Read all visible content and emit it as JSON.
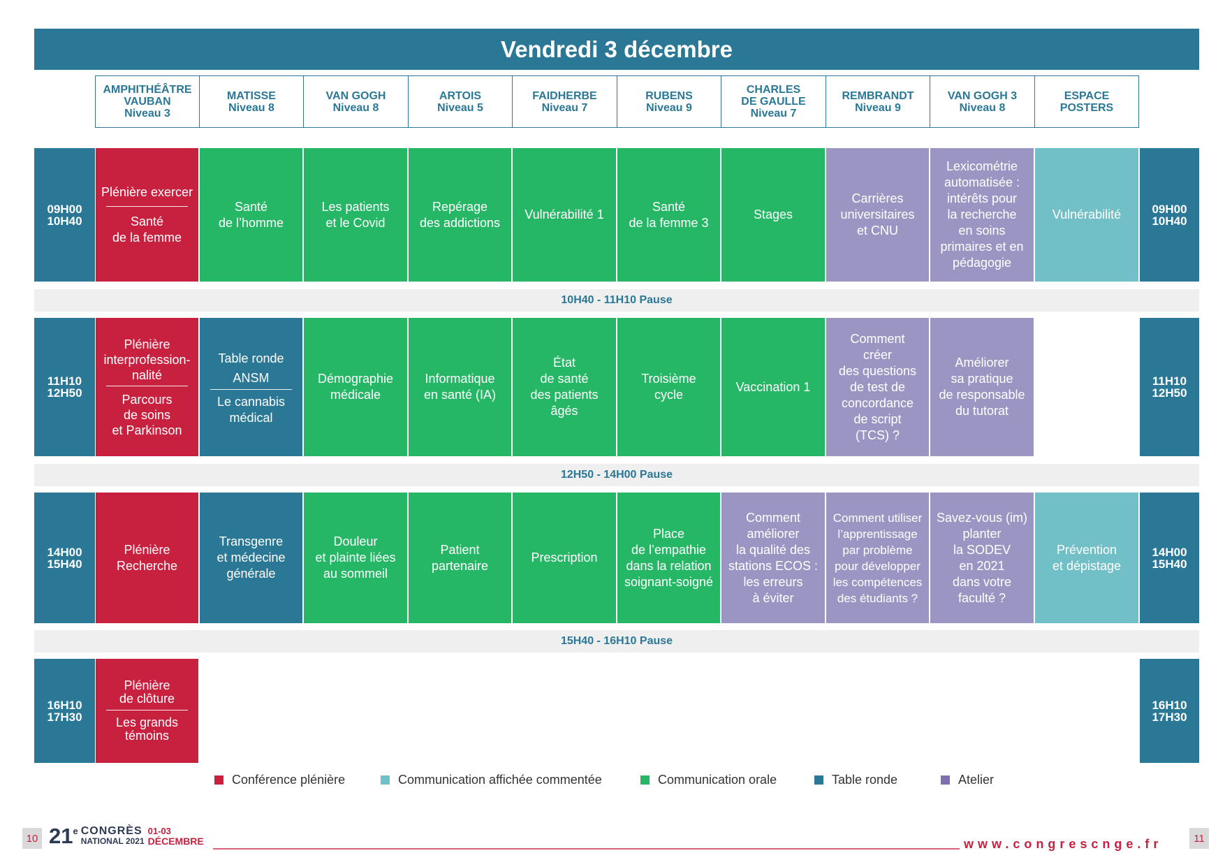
{
  "title": "Vendredi 3  décembre",
  "rooms": [
    {
      "l1": "AMPHITHÉÂTRE",
      "l2": "VAUBAN",
      "l3": "Niveau 3"
    },
    {
      "l1": "MATISSE",
      "l2": "Niveau 8",
      "l3": ""
    },
    {
      "l1": "VAN GOGH",
      "l2": "Niveau 8",
      "l3": ""
    },
    {
      "l1": "ARTOIS",
      "l2": "Niveau 5",
      "l3": ""
    },
    {
      "l1": "FAIDHERBE",
      "l2": "Niveau 7",
      "l3": ""
    },
    {
      "l1": "RUBENS",
      "l2": "Niveau 9",
      "l3": ""
    },
    {
      "l1": "CHARLES",
      "l2": "DE GAULLE",
      "l3": "Niveau 7"
    },
    {
      "l1": "REMBRANDT",
      "l2": "Niveau 9",
      "l3": ""
    },
    {
      "l1": "VAN GOGH 3",
      "l2": "Niveau 8",
      "l3": ""
    },
    {
      "l1": "ESPACE",
      "l2": "POSTERS",
      "l3": ""
    }
  ],
  "slots": [
    {
      "start": "09H00",
      "end": "10H40"
    },
    {
      "start": "11H10",
      "end": "12H50"
    },
    {
      "start": "14H00",
      "end": "15H40"
    },
    {
      "start": "16H10",
      "end": "17H30"
    }
  ],
  "pauses": [
    "10H40 -  11H10 Pause",
    "12H50 - 14H00 Pause",
    "15H40 - 16H10 Pause"
  ],
  "sessions": {
    "s1": {
      "c1_top": "Plénière exercer",
      "c1_bottom": "Santé\nde la femme",
      "c2": "Santé\nde l’homme",
      "c3": "Les patients\net le Covid",
      "c4": "Repérage\ndes addictions",
      "c5": "Vulnérabilité 1",
      "c6": "Santé\nde la femme 3",
      "c7": "Stages",
      "c8": "Carrières\nuniversitaires\net CNU",
      "c9": "Lexicométrie\nautomatisée :\nintérêts pour\nla recherche\nen soins\nprimaires et en\npédagogie",
      "c10": "Vulnérabilité"
    },
    "s2": {
      "c1_top": "Plénière\ninterprofession-\nnalité",
      "c1_bottom": "Parcours\nde soins\net Parkinson",
      "c2_top": "Table ronde\nANSM",
      "c2_bottom": "Le cannabis\nmédical",
      "c3": "Démographie\nmédicale",
      "c4": "Informatique\nen santé (IA)",
      "c5": "État\nde santé\ndes patients\nâgés",
      "c6": "Troisième\ncycle",
      "c7": "Vaccination 1",
      "c8": "Comment\ncréer\ndes questions\nde test de\nconcordance\nde script\n(TCS) ?",
      "c9": "Améliorer\nsa pratique\nde responsable\ndu tutorat"
    },
    "s3": {
      "c1": "Plénière\nRecherche",
      "c2": "Transgenre\net médecine\ngénérale",
      "c3": "Douleur\net plainte liées\nau sommeil",
      "c4": "Patient\npartenaire",
      "c5": "Prescription",
      "c6": "Place\nde l’empathie\ndans la relation\nsoignant-soigné",
      "c7": "Comment\naméliorer\nla qualité des\nstations ECOS :\nles erreurs\nà éviter",
      "c8": "Comment utiliser\nl’apprentissage\npar problème\npour développer\nles compétences\ndes étudiants ?",
      "c9": "Savez-vous (im)\nplanter\nla SODEV\nen 2021\ndans votre\nfaculté ?",
      "c10": "Prévention\net dépistage"
    },
    "s4": {
      "c1_top": "Plénière\nde clôture",
      "c1_bottom": "Les grands\ntémoins"
    }
  },
  "legend": [
    {
      "label": "Conférence plénière",
      "color": "#c8213f"
    },
    {
      "label": "Communication affichée commentée",
      "color": "#72c0c7"
    },
    {
      "label": "Communication orale",
      "color": "#25b765"
    },
    {
      "label": "Table ronde",
      "color": "#2a7896"
    },
    {
      "label": "Atelier",
      "color": "#7e6fae"
    }
  ],
  "footer": {
    "page_left": "10",
    "page_right": "11",
    "logo_num": "21",
    "logo_sup": "e",
    "logo_congres": "CONGRÈS",
    "logo_national": "NATIONAL 2021",
    "logo_dates": "01-03",
    "logo_month": "DÉCEMBRE",
    "url": "www.congrescnge.fr"
  }
}
